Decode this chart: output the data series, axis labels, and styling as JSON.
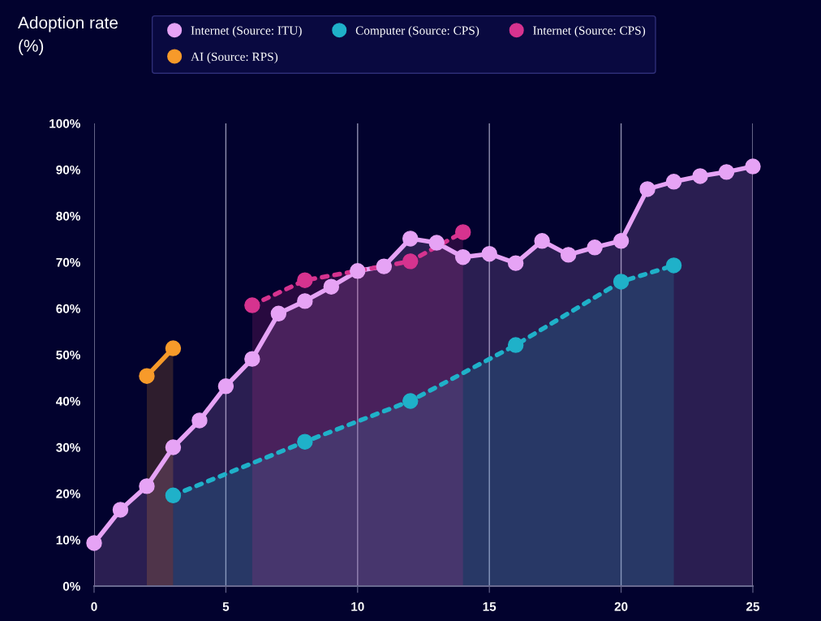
{
  "chart_data": {
    "type": "area",
    "ylabel": "Adoption rate (%)",
    "series": [
      {
        "name": "Internet (Source: ITU)",
        "color": "#e6a3f5",
        "line_style": "solid",
        "x": [
          0,
          1,
          2,
          3,
          4,
          5,
          6,
          7,
          8,
          9,
          10,
          11,
          12,
          13,
          14,
          15,
          16,
          17,
          18,
          19,
          20,
          21,
          22,
          23,
          24,
          25
        ],
        "values": [
          9.3,
          16.5,
          21.6,
          30.0,
          35.8,
          43.2,
          49.1,
          58.9,
          61.6,
          64.7,
          68.1,
          69.1,
          75.1,
          74.2,
          71.1,
          71.8,
          69.8,
          74.6,
          71.6,
          73.2,
          74.6,
          85.8,
          87.4,
          88.6,
          89.5,
          90.7
        ]
      },
      {
        "name": "AI (Source: RPS)",
        "color": "#f79a2a",
        "line_style": "solid",
        "x": [
          2,
          3
        ],
        "values": [
          45.4,
          51.4
        ]
      },
      {
        "name": "Computer (Source: CPS)",
        "color": "#1fb1c9",
        "line_style": "dotted",
        "x": [
          3,
          8,
          12,
          16,
          20,
          22
        ],
        "values": [
          19.6,
          31.2,
          40.0,
          52.1,
          65.8,
          69.3
        ]
      },
      {
        "name": "Internet (Source: CPS)",
        "color": "#d6338f",
        "line_style": "dotted",
        "x": [
          6,
          8,
          12,
          14
        ],
        "values": [
          60.7,
          66.1,
          70.2,
          76.5
        ]
      }
    ],
    "xlim": [
      0,
      25
    ],
    "xticks": [
      0,
      5,
      10,
      15,
      20,
      25
    ],
    "ylim": [
      0,
      100
    ],
    "yticks": [
      {
        "value": 0,
        "label": "0%"
      },
      {
        "value": 10,
        "label": "10%"
      },
      {
        "value": 20,
        "label": "20%"
      },
      {
        "value": 30,
        "label": "30%"
      },
      {
        "value": 40,
        "label": "40%"
      },
      {
        "value": 50,
        "label": "50%"
      },
      {
        "value": 60,
        "label": "60%"
      },
      {
        "value": 70,
        "label": "70%"
      },
      {
        "value": 80,
        "label": "80%"
      },
      {
        "value": 90,
        "label": "90%"
      },
      {
        "value": 100,
        "label": "100%"
      }
    ],
    "grid": "x",
    "legend": "top left",
    "marker": "circle"
  }
}
